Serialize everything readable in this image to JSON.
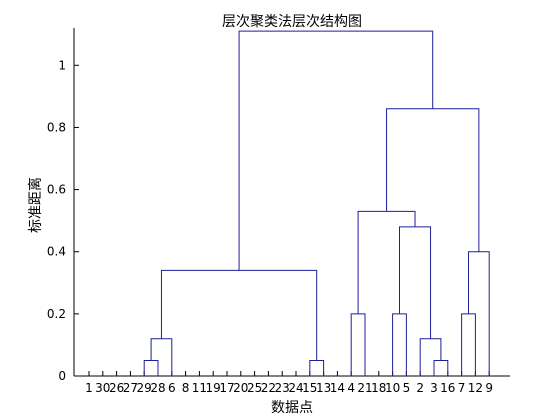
{
  "chart_data": {
    "type": "dendrogram",
    "title": "层次聚类法层次结构图",
    "xlabel": "数据点",
    "ylabel": "标准距离",
    "ylim": [
      0,
      1.12
    ],
    "yticks": [
      0,
      0.2,
      0.4,
      0.6,
      0.8,
      1
    ],
    "leaves": [
      "1",
      "30",
      "26",
      "27",
      "29",
      "28",
      "6",
      "8",
      "11",
      "19",
      "17",
      "20",
      "25",
      "22",
      "23",
      "24",
      "15",
      "13",
      "14",
      "4",
      "21",
      "18",
      "10",
      "5",
      "2",
      "3",
      "16",
      "7",
      "12",
      "9"
    ],
    "merges": [
      {
        "a": 4,
        "b": 5,
        "height": 0.05
      },
      {
        "a": 16,
        "b": 17,
        "height": 0.05
      },
      {
        "a": 25,
        "b": 26,
        "height": 0.05
      },
      {
        "a": "m0",
        "b": 6,
        "height": 0.12
      },
      {
        "a": 24,
        "b": "m2",
        "height": 0.12
      },
      {
        "a": 19,
        "b": 20,
        "height": 0.2
      },
      {
        "a": 22,
        "b": 23,
        "height": 0.2
      },
      {
        "a": 27,
        "b": 28,
        "height": 0.2
      },
      {
        "a": "m6",
        "b": "m4",
        "height": 0.48
      },
      {
        "a": "m7",
        "b": 29,
        "height": 0.4
      },
      {
        "a": "m3",
        "b": "m1",
        "height": 0.34
      },
      {
        "a": "m5",
        "b": "m8",
        "height": 0.53
      },
      {
        "a": "m11",
        "b": "m9",
        "height": 0.86
      },
      {
        "a": "m10",
        "b": "m12",
        "height": 1.11
      }
    ],
    "link_color": "#1f1f99",
    "grid": false,
    "legend": "none"
  }
}
